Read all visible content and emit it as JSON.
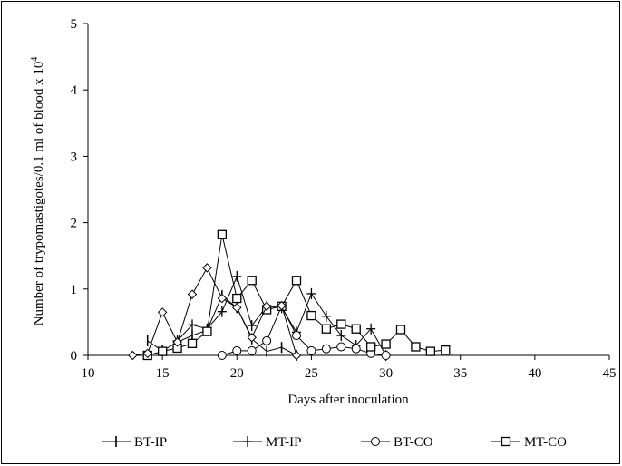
{
  "chart_data": {
    "type": "line",
    "title": "",
    "xlabel": "Days after inoculation",
    "ylabel": "Number of trypomastigotes/0.1 ml of blood x 10",
    "ylabel_superscript": "4",
    "xlim": [
      10,
      45
    ],
    "ylim": [
      0,
      5
    ],
    "xticks": [
      10,
      15,
      20,
      25,
      30,
      35,
      40,
      45
    ],
    "yticks": [
      0,
      1,
      2,
      3,
      4,
      5
    ],
    "grid": false,
    "legend_position": "bottom",
    "series": [
      {
        "name": "BT-IP",
        "marker": "vbar",
        "x": [
          14,
          15,
          16,
          17,
          18,
          19,
          20,
          21,
          22,
          23,
          24
        ],
        "y": [
          0.22,
          0.07,
          0.2,
          0.3,
          0.38,
          0.9,
          0.72,
          0.25,
          0.06,
          0.12,
          0.0
        ]
      },
      {
        "name": "MT-IP",
        "marker": "plus",
        "x": [
          16,
          17,
          18,
          19,
          20,
          21,
          22,
          23,
          24,
          25,
          26,
          27,
          28,
          29,
          30
        ],
        "y": [
          0.22,
          0.46,
          0.4,
          0.66,
          1.19,
          0.45,
          0.74,
          0.72,
          0.35,
          0.93,
          0.59,
          0.3,
          0.15,
          0.4,
          0.0
        ]
      },
      {
        "name": "BT-CO",
        "marker": "circle",
        "x": [
          19,
          20,
          21,
          22,
          23,
          24,
          25,
          26,
          27,
          28,
          29,
          30
        ],
        "y": [
          0.0,
          0.07,
          0.07,
          0.22,
          0.74,
          0.3,
          0.07,
          0.1,
          0.13,
          0.1,
          0.03,
          0.0
        ]
      },
      {
        "name": "MT-CO",
        "marker": "square",
        "x": [
          14,
          15,
          16,
          17,
          18,
          19,
          20,
          21,
          22,
          23,
          24,
          25,
          26,
          27,
          28,
          29,
          30,
          31,
          32,
          33,
          34
        ],
        "y": [
          0.0,
          0.06,
          0.11,
          0.18,
          0.36,
          1.82,
          0.86,
          1.13,
          0.69,
          0.74,
          1.13,
          0.6,
          0.4,
          0.47,
          0.4,
          0.13,
          0.17,
          0.39,
          0.13,
          0.06,
          0.08
        ]
      },
      {
        "name": "",
        "marker": "diamond",
        "x": [
          13,
          14,
          15,
          16,
          17,
          18,
          19,
          20,
          21,
          22,
          23,
          24
        ],
        "y": [
          0.0,
          0.03,
          0.65,
          0.2,
          0.92,
          1.32,
          0.86,
          0.72,
          0.27,
          0.74,
          0.75,
          0.0
        ]
      }
    ]
  }
}
